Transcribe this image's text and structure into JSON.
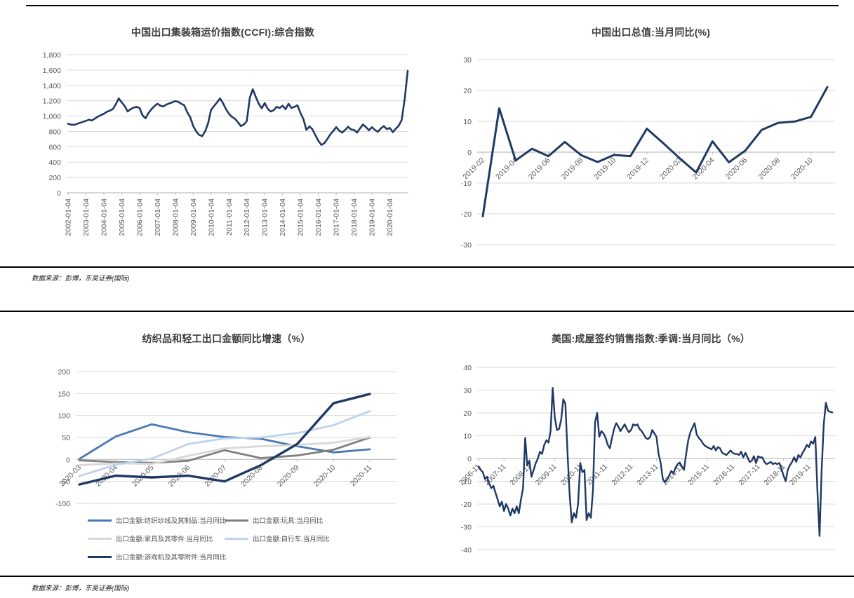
{
  "source_note_top": "数据来源：彭博，东吴证券(国际)",
  "source_note_bottom": "数据来源：彭博，东吴证券(国际)",
  "colors": {
    "navy": "#1f3864",
    "medium_blue": "#4a79b3",
    "dark_grey": "#7f7f7f",
    "light_grey": "#d8d8d8",
    "light_blue": "#bdd2ec",
    "gridline": "#d9d9d9",
    "axis": "#bfbfbf",
    "axis_text": "#595959"
  },
  "chart_data": [
    {
      "id": "ccfi",
      "type": "line",
      "title": "中国出口集装箱运价指数(CCFI):综合指数",
      "ylim": [
        0,
        1800
      ],
      "ytick_step": 200,
      "ytick_format": "comma",
      "grid": true,
      "x_label_rotation": -90,
      "points_per_label": 6,
      "x_labels": [
        "2002-01-04",
        "2003-01-04",
        "2004-01-04",
        "2005-01-04",
        "2006-01-04",
        "2007-01-04",
        "2008-01-04",
        "2009-01-04",
        "2010-01-04",
        "2011-01-04",
        "2012-01-04",
        "2013-01-04",
        "2014-01-04",
        "2015-01-04",
        "2016-01-04",
        "2017-01-04",
        "2018-01-04",
        "2019-01-04",
        "2020-01-04"
      ],
      "series": [
        {
          "color": "#1f3864",
          "values": [
            900,
            888,
            885,
            898,
            912,
            925,
            938,
            952,
            942,
            968,
            992,
            1012,
            1030,
            1055,
            1070,
            1090,
            1150,
            1230,
            1180,
            1130,
            1060,
            1090,
            1110,
            1120,
            1105,
            1010,
            970,
            1040,
            1090,
            1130,
            1160,
            1135,
            1125,
            1150,
            1165,
            1180,
            1195,
            1185,
            1160,
            1140,
            1050,
            985,
            870,
            800,
            755,
            738,
            800,
            905,
            1080,
            1130,
            1180,
            1230,
            1170,
            1090,
            1030,
            990,
            965,
            920,
            870,
            890,
            935,
            1240,
            1350,
            1250,
            1160,
            1100,
            1170,
            1095,
            1060,
            1075,
            1120,
            1105,
            1135,
            1090,
            1160,
            1105,
            1120,
            1140,
            1040,
            960,
            820,
            865,
            830,
            750,
            680,
            625,
            645,
            700,
            760,
            805,
            855,
            810,
            785,
            820,
            860,
            825,
            820,
            785,
            840,
            890,
            855,
            815,
            855,
            820,
            795,
            840,
            870,
            830,
            845,
            790,
            835,
            875,
            950,
            1230,
            1590
          ]
        }
      ]
    },
    {
      "id": "exports",
      "type": "line",
      "title": "中国出口总值:当月同比(%)",
      "ylim": [
        -30,
        30
      ],
      "ytick_step": 10,
      "grid": true,
      "x_label_rotation": -45,
      "points_per_label": 2,
      "x_labels": [
        "2019-02",
        "2019-04",
        "2019-06",
        "2019-08",
        "2019-10",
        "2019-12",
        "2020-02",
        "2020-04",
        "2020-06",
        "2020-08",
        "2020-10"
      ],
      "series": [
        {
          "color": "#1f3864",
          "values": [
            -20.8,
            14.2,
            -2.7,
            1.1,
            -1.3,
            3.3,
            -1,
            -3.2,
            -0.9,
            -1.3,
            7.6,
            2.9,
            -2,
            -6.6,
            3.5,
            -3.3,
            0.5,
            7.2,
            9.5,
            9.9,
            11.4,
            21.1
          ]
        }
      ]
    },
    {
      "id": "textile",
      "type": "line",
      "title": "纺织品和轻工出口金额同比增速（%）",
      "ylim": [
        -100,
        200
      ],
      "ytick_step": 50,
      "grid": true,
      "x_label_rotation": -45,
      "points_per_label": 1,
      "legend_position": "bottom",
      "x_labels": [
        "2020-03",
        "2020-04",
        "2020-05",
        "2020-06",
        "2020-07",
        "2020-08",
        "2020-09",
        "2020-10",
        "2020-11"
      ],
      "series": [
        {
          "name": "出口金额:纺织纱线及其制品:当月同比",
          "color": "#4a79b3",
          "values": [
            1,
            52,
            80,
            62,
            51,
            47,
            30,
            16,
            23
          ]
        },
        {
          "name": "出口金额:玩具:当月同比",
          "color": "#7f7f7f",
          "values": [
            -2,
            -6,
            -8,
            -3,
            21,
            3,
            9,
            22,
            50
          ]
        },
        {
          "name": "出口金额:家具及其零件:当月同比",
          "color": "#d8d8d8",
          "values": [
            -13,
            -9,
            -10,
            8,
            25,
            30,
            33,
            38,
            51
          ]
        },
        {
          "name": "出口金额:自行车:当月同比",
          "color": "#bdd2ec",
          "values": [
            -38,
            -12,
            2,
            35,
            48,
            50,
            60,
            78,
            110
          ]
        },
        {
          "name": "出口金额:游戏机及其零附件:当月同比",
          "color": "#1f3864",
          "values": [
            -57,
            -37,
            -41,
            -37,
            -50,
            -13,
            35,
            128,
            149
          ]
        }
      ]
    },
    {
      "id": "phs",
      "type": "line",
      "title": "美国:成屋签约销售指数:季调:当月同比（%）",
      "ylim": [
        -40,
        40
      ],
      "ytick_step": 10,
      "grid": true,
      "x_label_rotation": -45,
      "points_per_label": 12,
      "x_labels": [
        "2006-11",
        "2007-11",
        "2008-11",
        "2009-11",
        "2010-11",
        "2011-11",
        "2012-11",
        "2013-11",
        "2014-11",
        "2015-11",
        "2016-11",
        "2017-11",
        "2018-11",
        "2019-11"
      ],
      "series": [
        {
          "color": "#1f3864",
          "values": [
            -3.5,
            -5,
            -6,
            -9,
            -8,
            -11,
            -13,
            -12,
            -15,
            -18,
            -21,
            -19,
            -23,
            -20,
            -22,
            -25,
            -22,
            -24,
            -21,
            -24,
            -18,
            -13,
            9,
            -3,
            -1,
            -8,
            -5,
            -2,
            0,
            3,
            2,
            6,
            8,
            7,
            12,
            31,
            18,
            12.5,
            13,
            17,
            26,
            24,
            2,
            -16,
            -28,
            -24,
            -26,
            -20,
            -2,
            -6,
            -5,
            -27,
            -24,
            -26,
            -14,
            16,
            20,
            9.5,
            12,
            11,
            9,
            6,
            4.5,
            9,
            13,
            15.5,
            14,
            12,
            13.5,
            15,
            13,
            11.5,
            12.5,
            15,
            14.5,
            15,
            13,
            12,
            10.5,
            9,
            8.5,
            9.5,
            12.5,
            11,
            9.5,
            2,
            -2,
            -9,
            -10.5,
            -9.2,
            -7.5,
            -5.5,
            -6.5,
            -4,
            -2.5,
            -1.8,
            -3.5,
            -5,
            2,
            8,
            11.5,
            13.5,
            15.5,
            10.5,
            9,
            8,
            6.5,
            5.5,
            5,
            4.5,
            4,
            5.5,
            3.5,
            5,
            4.5,
            2.5,
            2,
            1.5,
            2.5,
            3.5,
            2.5,
            2,
            2,
            1.5,
            3,
            0.5,
            2.5,
            0.5,
            -1.5,
            -1,
            1,
            -2,
            1,
            0.5,
            0.5,
            -1.5,
            -2.5,
            -2,
            -1.5,
            -2.5,
            -2,
            -2.5,
            -2,
            -4.5,
            -7.5,
            -10,
            -5,
            -3,
            -1.5,
            0.5,
            -1.5,
            1.5,
            0.5,
            2.5,
            4,
            6,
            5,
            7.5,
            6.5,
            9.4,
            -14.5,
            -34,
            -5,
            15,
            24.5,
            21,
            20.5,
            20.2
          ]
        }
      ]
    }
  ]
}
